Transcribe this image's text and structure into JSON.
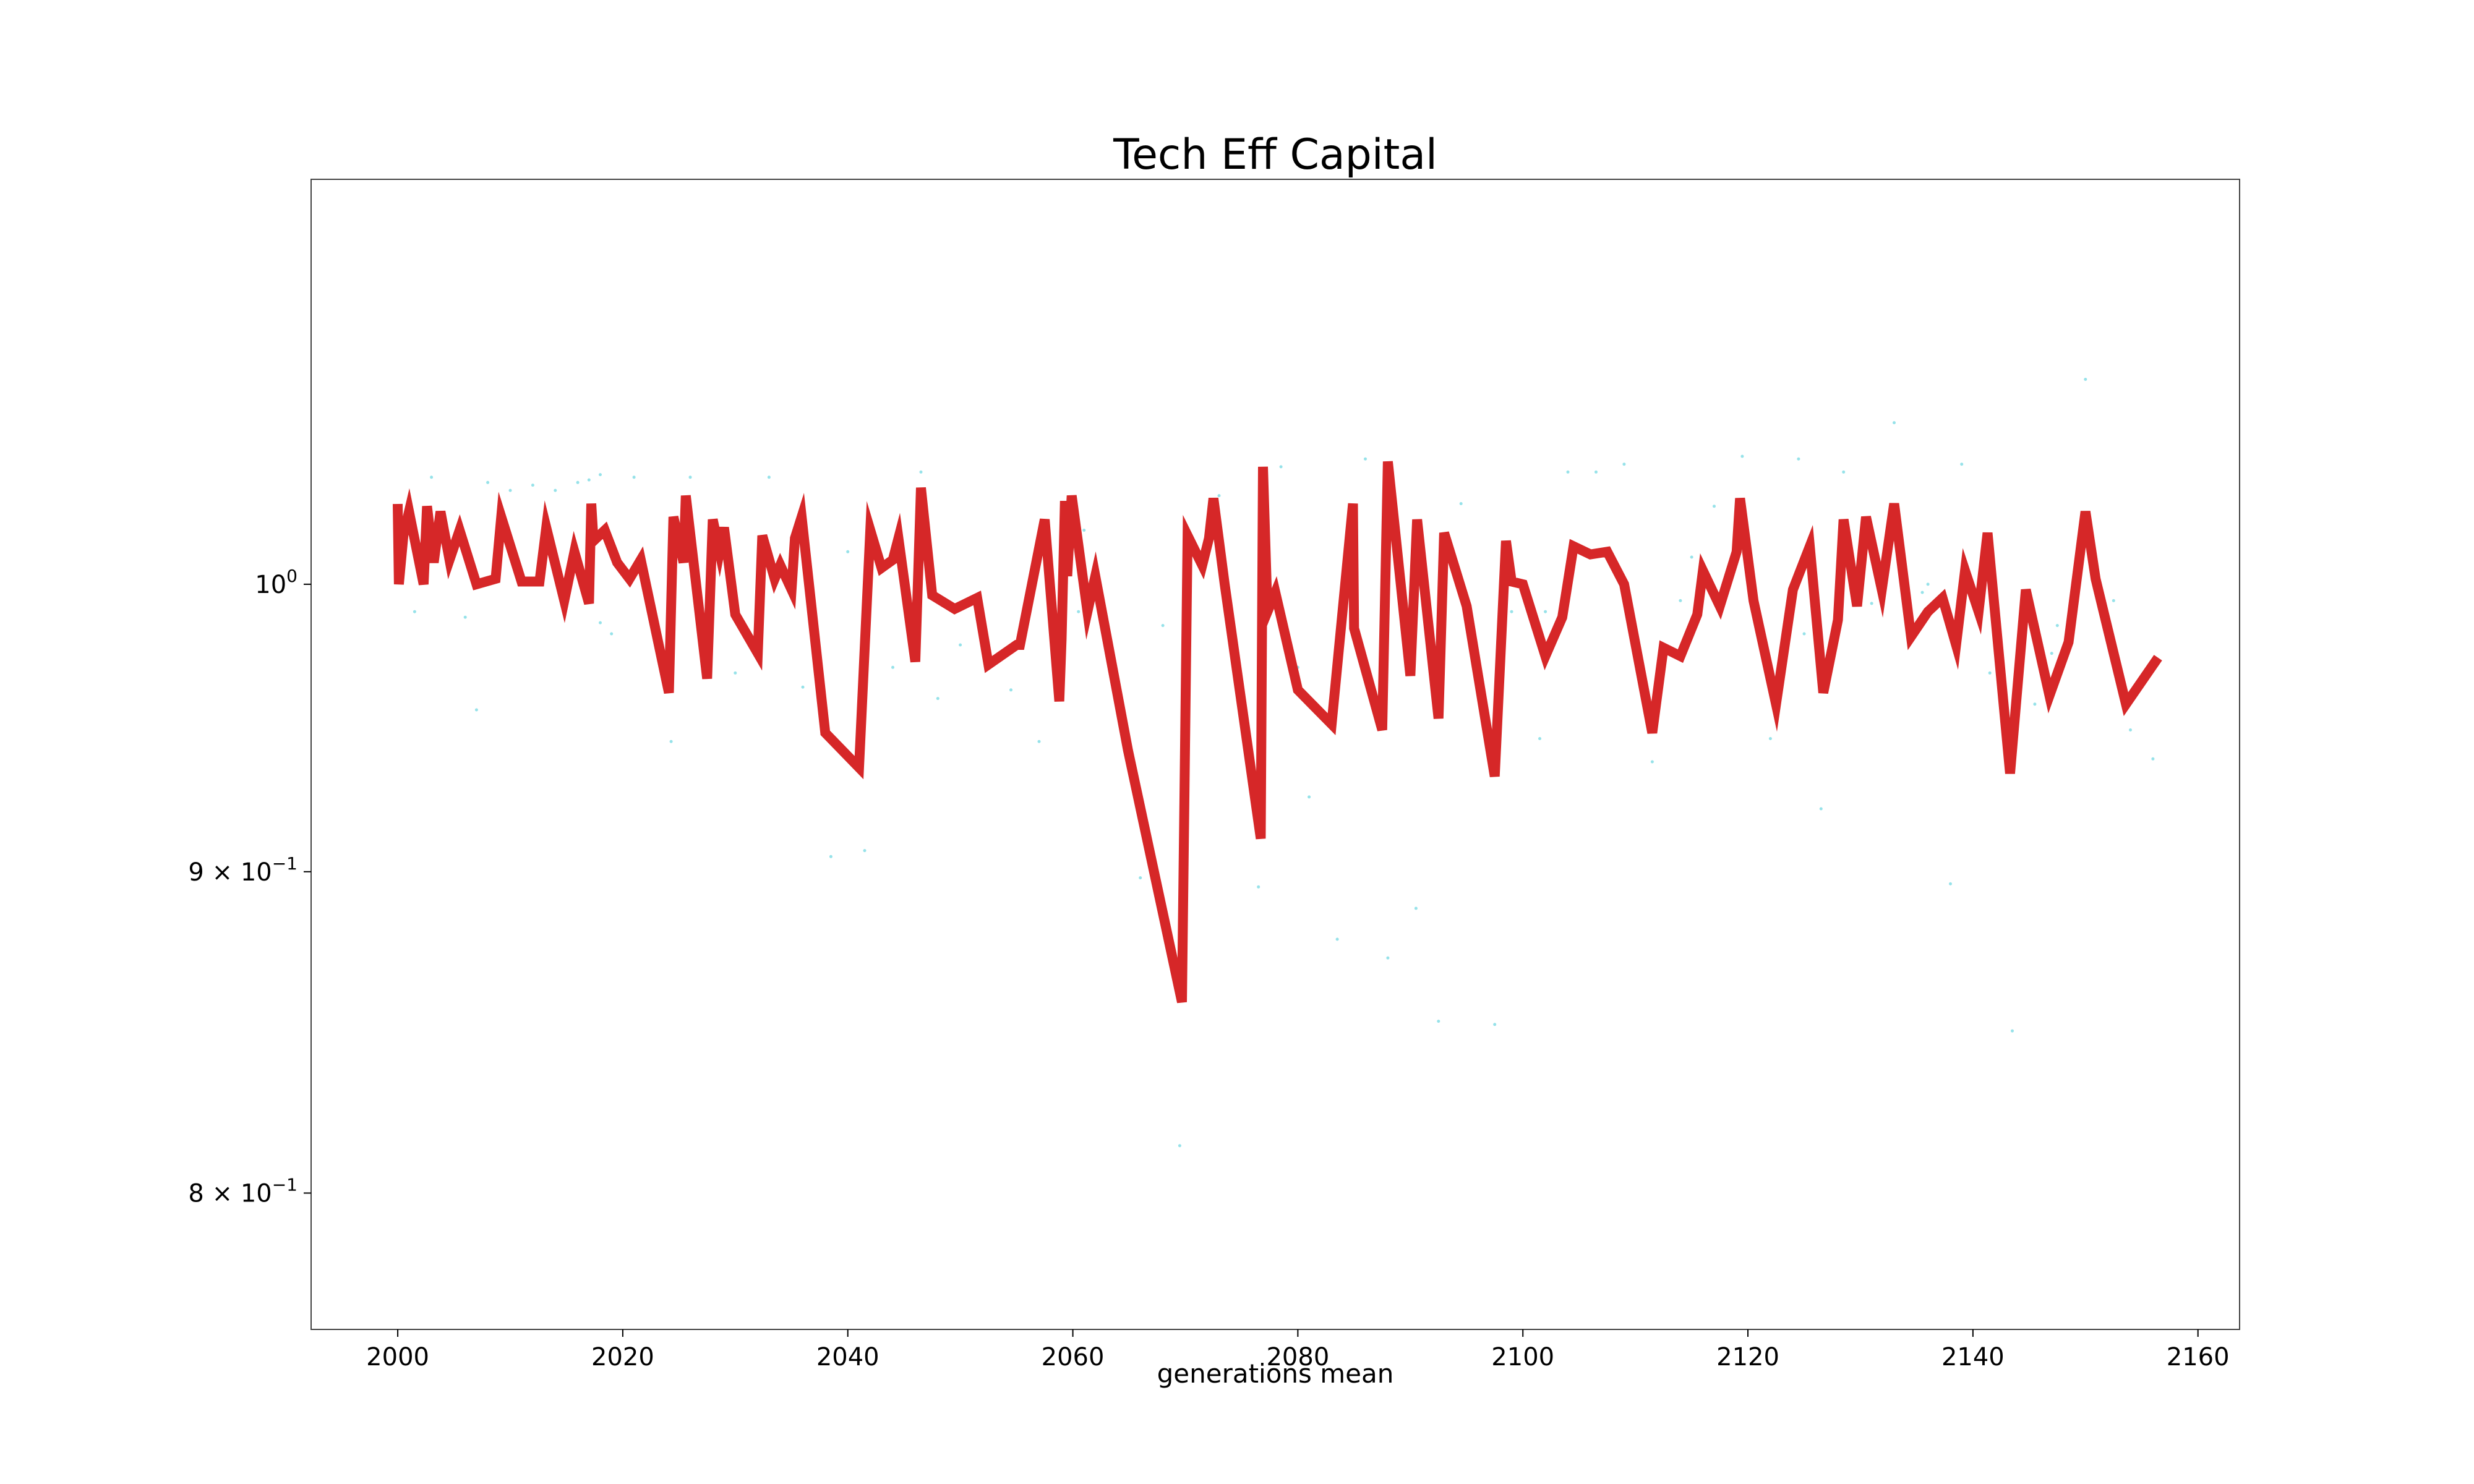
{
  "chart_data": {
    "type": "line",
    "title": "Tech Eff Capital",
    "xlabel": "generations mean",
    "ylabel": "",
    "yscale": "log",
    "xlim": [
      1992.3,
      2163.7
    ],
    "ylim": [
      0.761,
      1.16
    ],
    "grid": false,
    "legend": "none",
    "line_color": "#d62728",
    "scatter_color": "#17becf",
    "x_ticks": [
      {
        "value": 2000,
        "label": "2000"
      },
      {
        "value": 2020,
        "label": "2020"
      },
      {
        "value": 2040,
        "label": "2040"
      },
      {
        "value": 2060,
        "label": "2060"
      },
      {
        "value": 2080,
        "label": "2080"
      },
      {
        "value": 2100,
        "label": "2100"
      },
      {
        "value": 2120,
        "label": "2120"
      },
      {
        "value": 2140,
        "label": "2140"
      },
      {
        "value": 2160,
        "label": "2160"
      }
    ],
    "y_ticks": [
      {
        "value": 1.0,
        "base": "10",
        "exp": "0",
        "prefix": ""
      },
      {
        "value": 0.9,
        "base": "10",
        "exp": "−1",
        "prefix": "9 × "
      },
      {
        "value": 0.8,
        "base": "10",
        "exp": "−1",
        "prefix": "8 × "
      }
    ],
    "series": [
      {
        "x": [
          2000.0,
          2000.1,
          2000.5,
          2001.0,
          2002.3,
          2002.6,
          2003.2,
          2003.8,
          2004.6,
          2005.5,
          2007.0,
          2008.7,
          2009.2,
          2011.0,
          2012.6,
          2013.2,
          2014.8,
          2015.7,
          2017.0,
          2017.2,
          2017.4,
          2018.4,
          2019.5,
          2020.6,
          2021.6,
          2024.1,
          2024.5,
          2025.4,
          2025.6,
          2027.5,
          2028.0,
          2028.6,
          2029.0,
          2030.0,
          2032.0,
          2032.4,
          2033.5,
          2034.0,
          2035.0,
          2035.3,
          2035.9,
          2038.0,
          2041.0,
          2042.0,
          2043.0,
          2044.0,
          2044.5,
          2046.0,
          2046.5,
          2047.5,
          2049.5,
          2051.5,
          2052.5,
          2055.0,
          2055.3,
          2057.5,
          2058.8,
          2059.0,
          2059.3,
          2059.5,
          2059.9,
          2061.3,
          2062.0,
          2064.9,
          2069.7,
          2070.2,
          2071.5,
          2072.1,
          2072.5,
          2073.5,
          2076.7,
          2076.9,
          2077.3,
          2078.0,
          2080.0,
          2083.0,
          2084.9,
          2085.0,
          2087.5,
          2088.0,
          2090.0,
          2090.6,
          2092.5,
          2093.0,
          2095.0,
          2097.5,
          2098.5,
          2099.0,
          2100.0,
          2102.0,
          2103.5,
          2104.5,
          2106.0,
          2107.5,
          2109.0,
          2111.5,
          2112.5,
          2114.0,
          2115.5,
          2116.0,
          2117.5,
          2119.0,
          2119.3,
          2120.5,
          2122.5,
          2124.0,
          2125.5,
          2126.7,
          2128.0,
          2128.5,
          2129.7,
          2130.5,
          2131.9,
          2133.0,
          2134.5,
          2136.0,
          2137.3,
          2138.5,
          2139.3,
          2140.5,
          2141.3,
          2143.3,
          2144.7,
          2146.8,
          2148.5,
          2150.0,
          2150.9,
          2153.6,
          2156.2
        ],
        "y": [
          1.028,
          1.0,
          1.018,
          1.027,
          1.0,
          1.029,
          1.008,
          1.027,
          1.009,
          1.02,
          1.0,
          1.002,
          1.025,
          1.001,
          1.001,
          1.021,
          0.994,
          1.012,
          0.993,
          1.03,
          1.016,
          1.02,
          1.008,
          1.002,
          1.009,
          0.961,
          1.025,
          1.008,
          1.033,
          0.966,
          1.024,
          1.012,
          1.021,
          0.989,
          0.975,
          1.018,
          1.002,
          1.007,
          0.998,
          1.017,
          1.025,
          0.947,
          0.935,
          1.02,
          1.006,
          1.009,
          1.017,
          0.972,
          1.036,
          0.996,
          0.991,
          0.995,
          0.971,
          0.978,
          0.978,
          1.024,
          0.958,
          0.98,
          1.031,
          1.003,
          1.033,
          0.99,
          1.003,
          0.941,
          0.858,
          1.018,
          1.007,
          1.017,
          1.032,
          1.0,
          0.911,
          1.044,
          0.99,
          0.997,
          0.962,
          0.95,
          1.03,
          0.984,
          0.948,
          1.046,
          0.967,
          1.024,
          0.952,
          1.019,
          0.992,
          0.932,
          1.016,
          1.001,
          1.0,
          0.974,
          0.988,
          1.014,
          1.011,
          1.012,
          1.0,
          0.947,
          0.977,
          0.974,
          0.989,
          1.005,
          0.992,
          1.012,
          1.032,
          0.994,
          0.957,
          0.998,
          1.014,
          0.961,
          0.987,
          1.024,
          0.992,
          1.025,
          0.998,
          1.03,
          0.981,
          0.99,
          0.995,
          0.978,
          1.005,
          0.99,
          1.019,
          0.933,
          0.998,
          0.96,
          0.979,
          1.027,
          1.002,
          0.957,
          0.972
        ]
      }
    ],
    "scatter": {
      "x": [
        2001.5,
        2003.0,
        2006.0,
        2008.0,
        2010.0,
        2012.0,
        2014.0,
        2016.0,
        2017.0,
        2018.0,
        2019.0,
        2021.0,
        2023.0,
        2024.3,
        2026.0,
        2030.0,
        2033.0,
        2036.0,
        2038.5,
        2041.5,
        2044.0,
        2046.5,
        2048.0,
        2050.0,
        2052.0,
        2054.5,
        2057.0,
        2060.5,
        2063.0,
        2066.0,
        2069.5,
        2073.0,
        2076.5,
        2078.5,
        2081.0,
        2083.5,
        2086.0,
        2088.0,
        2090.5,
        2092.5,
        2094.5,
        2097.5,
        2099.0,
        2101.5,
        2104.0,
        2106.5,
        2109.0,
        2111.5,
        2114.0,
        2117.0,
        2119.5,
        2122.0,
        2124.5,
        2126.5,
        2128.5,
        2131.0,
        2133.0,
        2135.5,
        2138.0,
        2139.0,
        2141.5,
        2143.5,
        2145.5,
        2147.5,
        2150.0,
        2152.5,
        2154.0,
        2156.0,
        2007.0,
        2018.0,
        2028.0,
        2040.0,
        2061.0,
        2068.0,
        2080.0,
        2091.0,
        2102.0,
        2115.0,
        2125.0,
        2136.0,
        2147.0
      ],
      "y": [
        0.99,
        1.04,
        0.988,
        1.038,
        1.035,
        1.037,
        1.035,
        1.038,
        1.039,
        1.041,
        0.982,
        1.04,
        0.98,
        0.944,
        1.04,
        0.968,
        1.04,
        0.963,
        0.905,
        0.907,
        0.97,
        1.042,
        0.959,
        0.978,
        0.978,
        0.962,
        0.944,
        0.99,
        0.988,
        0.898,
        0.814,
        1.033,
        0.895,
        1.044,
        0.925,
        0.878,
        1.047,
        0.872,
        0.888,
        0.852,
        1.03,
        0.851,
        0.99,
        0.945,
        1.042,
        1.042,
        1.045,
        0.937,
        0.994,
        1.029,
        1.048,
        0.945,
        1.047,
        0.921,
        1.042,
        0.993,
        1.061,
        0.997,
        0.896,
        1.045,
        0.968,
        0.849,
        0.957,
        0.985,
        1.078,
        0.994,
        0.948,
        0.938,
        0.955,
        0.986,
        0.998,
        1.012,
        1.02,
        0.985,
        0.97,
        1.008,
        0.99,
        1.01,
        0.982,
        1.0,
        0.975
      ]
    }
  }
}
